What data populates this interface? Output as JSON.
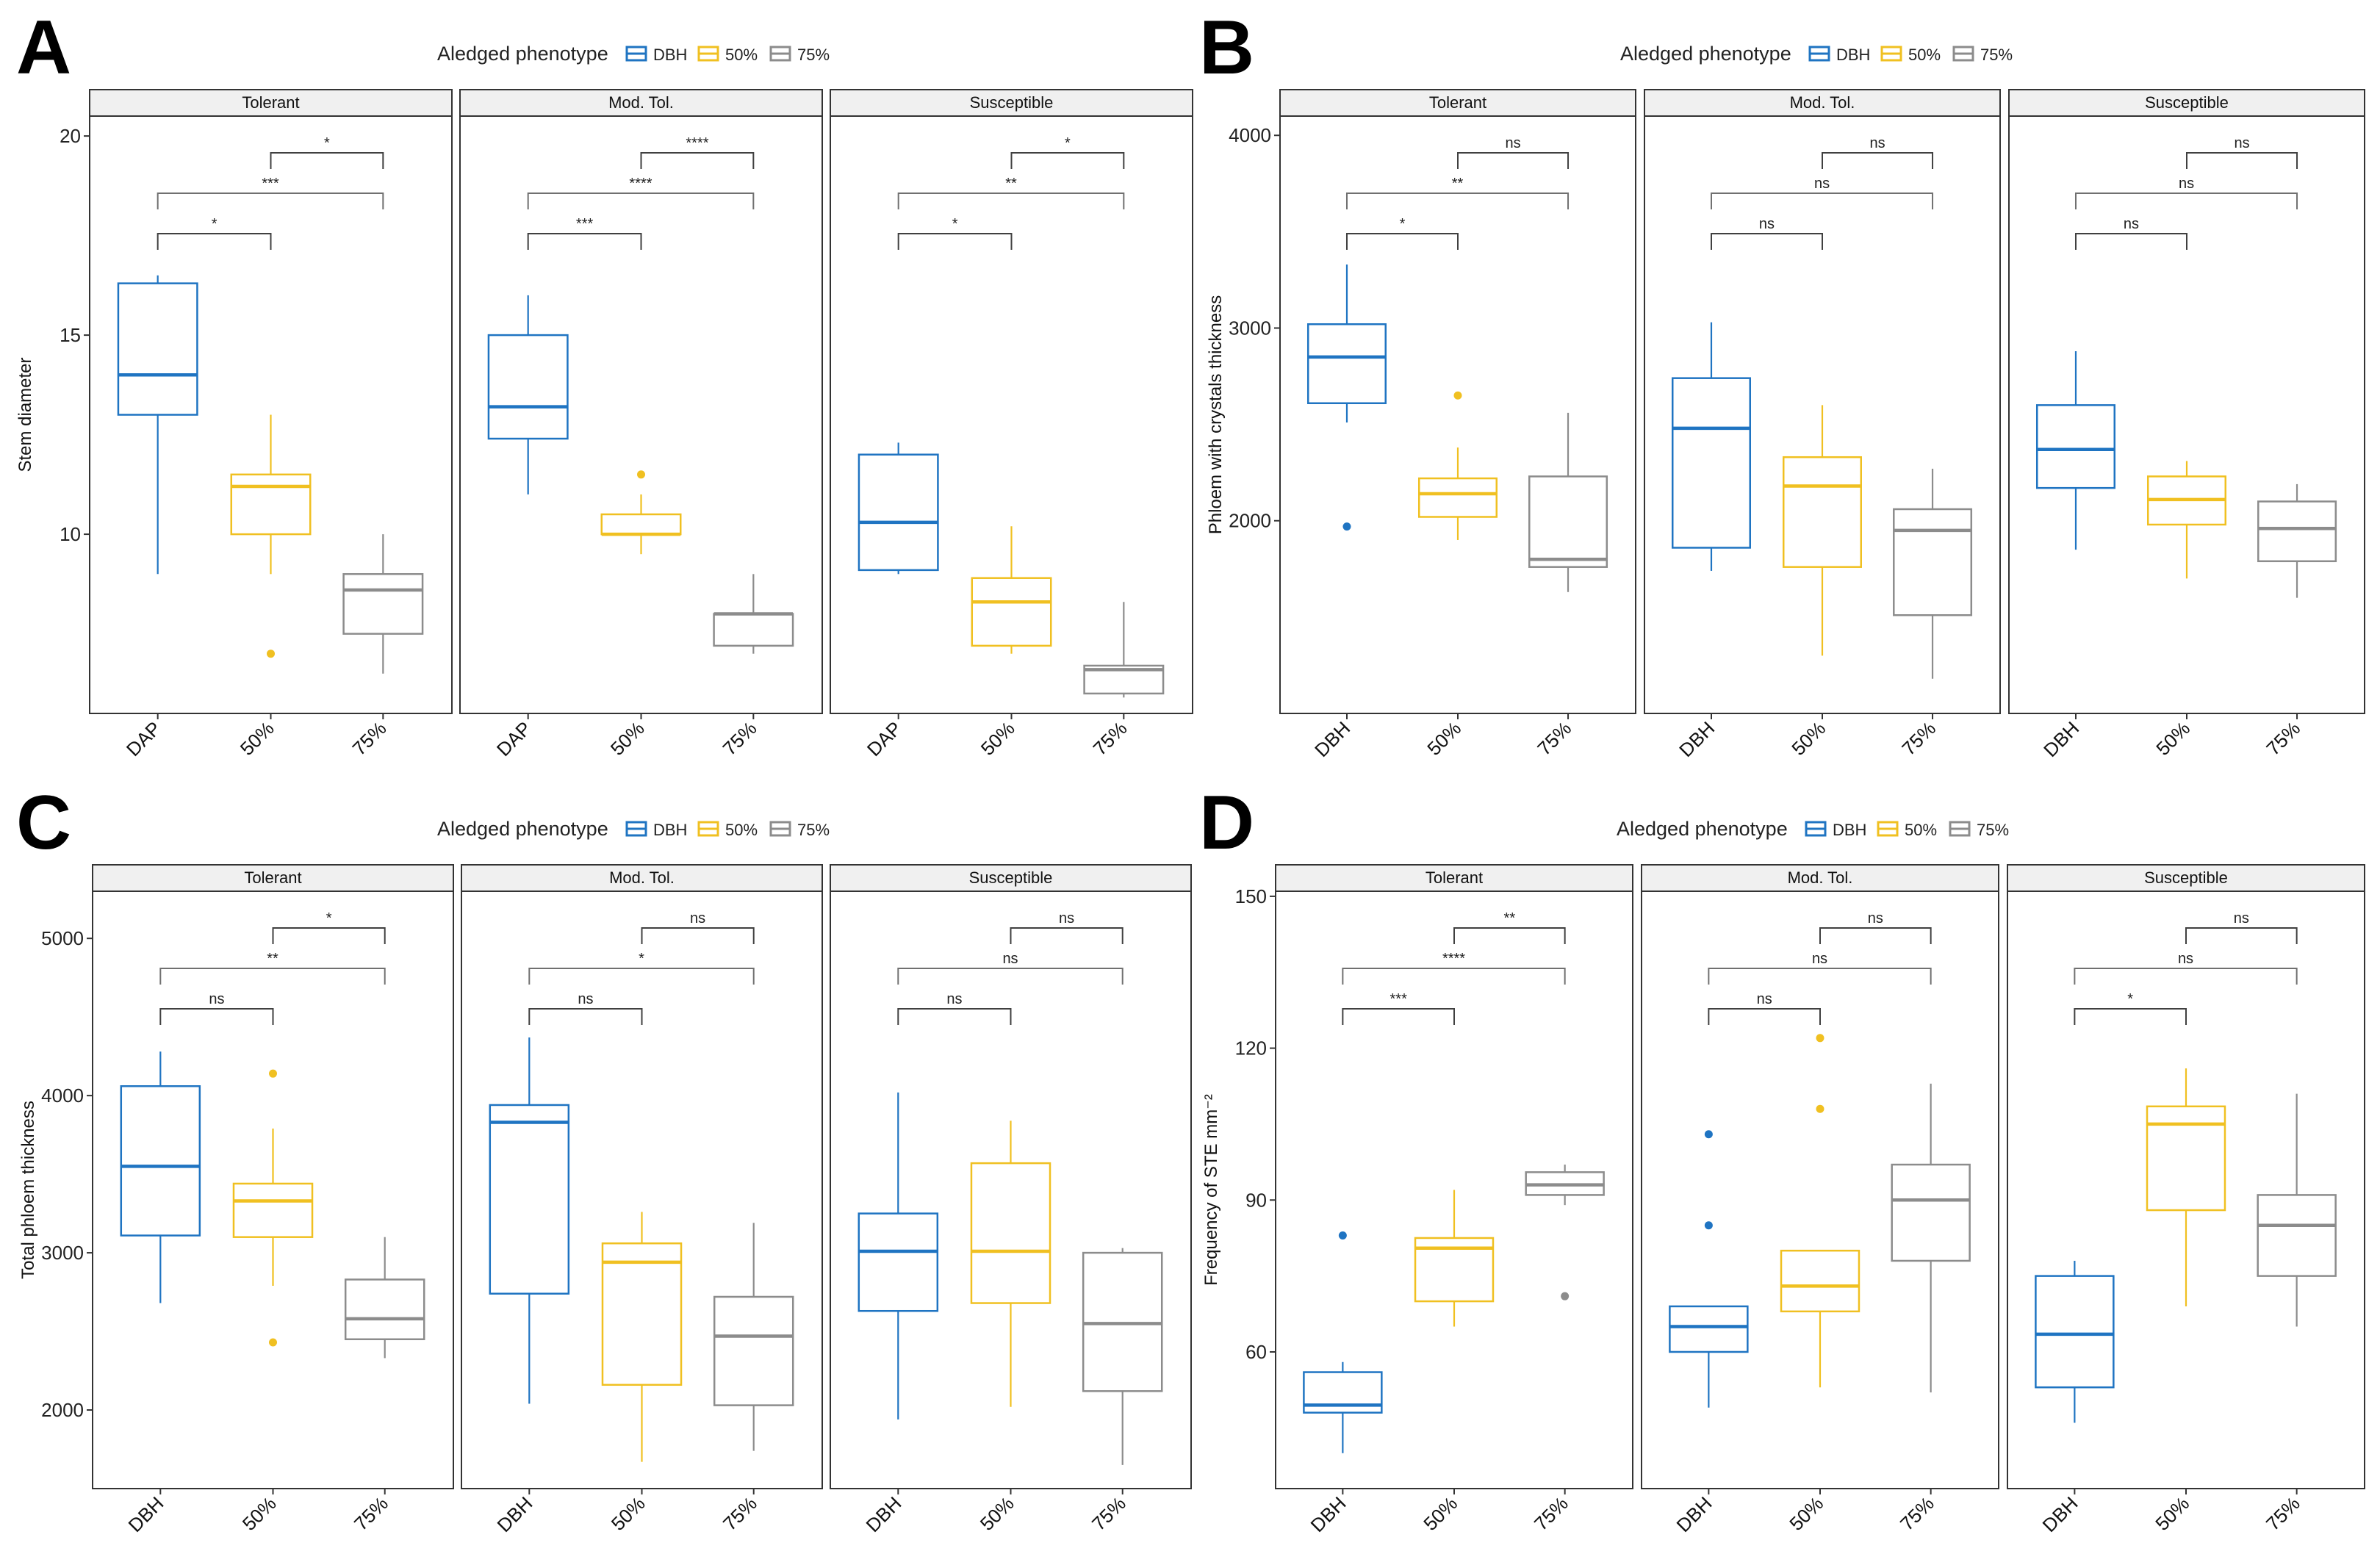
{
  "colors": {
    "dbh": "#1f74c2",
    "p50": "#f0c021",
    "p75": "#8c8c8c",
    "bracket": "#404040",
    "strip": "#f0f0f0"
  },
  "chart_data": [
    {
      "letter": "A",
      "type": "boxplot",
      "legend_title": "Aledged phenotype",
      "legend_items": [
        "DBH",
        "50%",
        "75%"
      ],
      "ylabel": "Stem diameter",
      "ylim": [
        5.5,
        20.5
      ],
      "yticks": [
        10,
        15,
        20
      ],
      "tick_labels": [
        "10",
        "15",
        "20"
      ],
      "x_labels": [
        "DAP",
        "50%",
        "75%"
      ],
      "facets": [
        {
          "title": "Tolerant",
          "boxes": [
            {
              "min": 9,
              "q1": 13,
              "med": 14,
              "q3": 16.3,
              "max": 16.5,
              "out": []
            },
            {
              "min": 9,
              "q1": 10,
              "med": 11.2,
              "q3": 11.5,
              "max": 13,
              "out": [
                7
              ]
            },
            {
              "min": 6.5,
              "q1": 7.5,
              "med": 8.6,
              "q3": 9,
              "max": 10,
              "out": []
            }
          ],
          "sig": [
            "*",
            "***",
            "*"
          ]
        },
        {
          "title": "Mod. Tol.",
          "boxes": [
            {
              "min": 11,
              "q1": 12.4,
              "med": 13.2,
              "q3": 15,
              "max": 16,
              "out": []
            },
            {
              "min": 9.5,
              "q1": 10,
              "med": 10,
              "q3": 10.5,
              "max": 11,
              "out": [
                11.5
              ]
            },
            {
              "min": 7,
              "q1": 7.2,
              "med": 8,
              "q3": 8,
              "max": 9,
              "out": []
            }
          ],
          "sig": [
            "***",
            "****",
            "****"
          ]
        },
        {
          "title": "Susceptible",
          "boxes": [
            {
              "min": 9,
              "q1": 9.1,
              "med": 10.3,
              "q3": 12,
              "max": 12.3,
              "out": []
            },
            {
              "min": 7,
              "q1": 7.2,
              "med": 8.3,
              "q3": 8.9,
              "max": 10.2,
              "out": []
            },
            {
              "min": 5.9,
              "q1": 6,
              "med": 6.6,
              "q3": 6.7,
              "max": 8.3,
              "out": []
            }
          ],
          "sig": [
            "*",
            "**",
            "*"
          ]
        }
      ]
    },
    {
      "letter": "B",
      "type": "boxplot",
      "legend_title": "Aledged phenotype",
      "legend_items": [
        "DBH",
        "50%",
        "75%"
      ],
      "ylabel": "Phloem with crystals thickness",
      "ylim": [
        1000,
        4100
      ],
      "yticks": [
        2000,
        3000,
        4000
      ],
      "tick_labels": [
        "2000",
        "3000",
        "4000"
      ],
      "x_labels": [
        "DBH",
        "50%",
        "75%"
      ],
      "facets": [
        {
          "title": "Tolerant",
          "boxes": [
            {
              "min": 2510,
              "q1": 2610,
              "med": 2850,
              "q3": 3020,
              "max": 3330,
              "out": [
                1970
              ]
            },
            {
              "min": 1900,
              "q1": 2020,
              "med": 2140,
              "q3": 2220,
              "max": 2380,
              "out": [
                2650
              ]
            },
            {
              "min": 1630,
              "q1": 1760,
              "med": 1800,
              "q3": 2230,
              "max": 2560,
              "out": []
            }
          ],
          "sig": [
            "*",
            "**",
            "ns"
          ]
        },
        {
          "title": "Mod. Tol.",
          "boxes": [
            {
              "min": 1740,
              "q1": 1860,
              "med": 2480,
              "q3": 2740,
              "max": 3030,
              "out": []
            },
            {
              "min": 1300,
              "q1": 1760,
              "med": 2180,
              "q3": 2330,
              "max": 2600,
              "out": []
            },
            {
              "min": 1180,
              "q1": 1510,
              "med": 1950,
              "q3": 2060,
              "max": 2270,
              "out": []
            }
          ],
          "sig": [
            "ns",
            "ns",
            "ns"
          ]
        },
        {
          "title": "Susceptible",
          "boxes": [
            {
              "min": 1850,
              "q1": 2170,
              "med": 2370,
              "q3": 2600,
              "max": 2880,
              "out": []
            },
            {
              "min": 1700,
              "q1": 1980,
              "med": 2110,
              "q3": 2230,
              "max": 2310,
              "out": []
            },
            {
              "min": 1600,
              "q1": 1790,
              "med": 1960,
              "q3": 2100,
              "max": 2190,
              "out": []
            }
          ],
          "sig": [
            "ns",
            "ns",
            "ns"
          ]
        }
      ]
    },
    {
      "letter": "C",
      "type": "boxplot",
      "legend_title": "Aledged phenotype",
      "legend_items": [
        "DBH",
        "50%",
        "75%"
      ],
      "ylabel": "Total phloem thickness",
      "ylim": [
        1500,
        5300
      ],
      "yticks": [
        2000,
        3000,
        4000,
        5000
      ],
      "tick_labels": [
        "2000",
        "3000",
        "4000",
        "5000"
      ],
      "x_labels": [
        "DBH",
        "50%",
        "75%"
      ],
      "facets": [
        {
          "title": "Tolerant",
          "boxes": [
            {
              "min": 2680,
              "q1": 3110,
              "med": 3550,
              "q3": 4060,
              "max": 4280,
              "out": []
            },
            {
              "min": 2790,
              "q1": 3100,
              "med": 3330,
              "q3": 3440,
              "max": 3790,
              "out": [
                2430,
                4140
              ]
            },
            {
              "min": 2330,
              "q1": 2450,
              "med": 2580,
              "q3": 2830,
              "max": 3100,
              "out": []
            }
          ],
          "sig": [
            "ns",
            "**",
            "*"
          ]
        },
        {
          "title": "Mod. Tol.",
          "boxes": [
            {
              "min": 2040,
              "q1": 2740,
              "med": 3830,
              "q3": 3940,
              "max": 4370,
              "out": []
            },
            {
              "min": 1670,
              "q1": 2160,
              "med": 2940,
              "q3": 3060,
              "max": 3260,
              "out": []
            },
            {
              "min": 1740,
              "q1": 2030,
              "med": 2470,
              "q3": 2720,
              "max": 3190,
              "out": []
            }
          ],
          "sig": [
            "ns",
            "*",
            "ns"
          ]
        },
        {
          "title": "Susceptible",
          "boxes": [
            {
              "min": 1940,
              "q1": 2630,
              "med": 3010,
              "q3": 3250,
              "max": 4020,
              "out": []
            },
            {
              "min": 2020,
              "q1": 2680,
              "med": 3010,
              "q3": 3570,
              "max": 3840,
              "out": []
            },
            {
              "min": 1650,
              "q1": 2120,
              "med": 2550,
              "q3": 3000,
              "max": 3030,
              "out": []
            }
          ],
          "sig": [
            "ns",
            "ns",
            "ns"
          ]
        }
      ]
    },
    {
      "letter": "D",
      "type": "boxplot",
      "legend_title": "Aledged phenotype",
      "legend_items": [
        "DBH",
        "50%",
        "75%"
      ],
      "ylabel": "Frequency of STE mm⁻²",
      "ylim": [
        33,
        151
      ],
      "yticks": [
        60,
        90,
        120,
        150
      ],
      "tick_labels": [
        "60",
        "90",
        "120",
        "150"
      ],
      "x_labels": [
        "DBH",
        "50%",
        "75%"
      ],
      "facets": [
        {
          "title": "Tolerant",
          "boxes": [
            {
              "min": 40,
              "q1": 48,
              "med": 49.5,
              "q3": 56,
              "max": 58,
              "out": [
                83
              ]
            },
            {
              "min": 65,
              "q1": 70,
              "med": 80.5,
              "q3": 82.5,
              "max": 92,
              "out": []
            },
            {
              "min": 89,
              "q1": 91,
              "med": 93,
              "q3": 95.5,
              "max": 97,
              "out": [
                71
              ]
            }
          ],
          "sig": [
            "***",
            "****",
            "**"
          ]
        },
        {
          "title": "Mod. Tol.",
          "boxes": [
            {
              "min": 49,
              "q1": 60,
              "med": 65,
              "q3": 69,
              "max": 69,
              "out": [
                85,
                103
              ]
            },
            {
              "min": 53,
              "q1": 68,
              "med": 73,
              "q3": 80,
              "max": 80,
              "out": [
                108,
                122
              ]
            },
            {
              "min": 52,
              "q1": 78,
              "med": 90,
              "q3": 97,
              "max": 113,
              "out": []
            }
          ],
          "sig": [
            "ns",
            "ns",
            "ns"
          ]
        },
        {
          "title": "Susceptible",
          "boxes": [
            {
              "min": 46,
              "q1": 53,
              "med": 63.5,
              "q3": 75,
              "max": 78,
              "out": []
            },
            {
              "min": 69,
              "q1": 88,
              "med": 105,
              "q3": 108.5,
              "max": 116,
              "out": []
            },
            {
              "min": 65,
              "q1": 75,
              "med": 85,
              "q3": 91,
              "max": 111,
              "out": []
            }
          ],
          "sig": [
            "*",
            "ns",
            "ns"
          ]
        }
      ]
    }
  ]
}
